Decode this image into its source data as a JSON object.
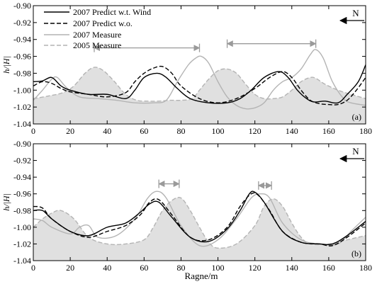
{
  "xlabel": "Ragne/m",
  "legend": {
    "entries": [
      {
        "name": "2007 Predict w.t. Wind",
        "color": "#000000",
        "dash": "solid"
      },
      {
        "name": "2007 Predict w.o.",
        "color": "#000000",
        "dash": "dashed"
      },
      {
        "name": "2007 Measure",
        "color": "#b4b4b4",
        "dash": "solid"
      },
      {
        "name": "2005 Measure",
        "color": "#b4b4b4",
        "dash": "dashed",
        "fill": "#e0e0e0"
      }
    ]
  },
  "chart_data": [
    {
      "type": "line",
      "panel_label": "(a)",
      "north_label": "N",
      "ylabel": "h/|H|",
      "xlim": [
        0,
        180
      ],
      "ylim": [
        -1.04,
        -0.9
      ],
      "x_ticks": [
        0,
        20,
        40,
        60,
        80,
        100,
        120,
        140,
        160,
        180
      ],
      "y_ticks": [
        -0.9,
        -0.92,
        -0.94,
        -0.96,
        -0.98,
        -1.0,
        -1.02,
        -1.04
      ],
      "x_tick_labels": [
        "0",
        "20",
        "40",
        "60",
        "80",
        "100",
        "120",
        "140",
        "160",
        "180"
      ],
      "y_tick_labels": [
        "-0.90",
        "-0.92",
        "-0.94",
        "-0.96",
        "-0.98",
        "-1.00",
        "-1.02",
        "-1.04"
      ],
      "arrows": [
        {
          "from": 33,
          "to": 90,
          "y": -0.95
        },
        {
          "from": 105,
          "to": 153,
          "y": -0.945
        }
      ],
      "series": [
        {
          "name": "2005 Measure",
          "x": [
            0,
            8,
            16,
            22,
            28,
            33,
            38,
            44,
            50,
            56,
            62,
            68,
            74,
            80,
            86,
            90,
            95,
            100,
            105,
            110,
            115,
            120,
            125,
            130,
            135,
            140,
            145,
            150,
            153,
            158,
            165,
            172,
            180
          ],
          "y": [
            -1.01,
            -1.007,
            -1.003,
            -0.995,
            -0.98,
            -0.973,
            -0.977,
            -0.99,
            -1.005,
            -1.012,
            -1.013,
            -1.013,
            -1.012,
            -1.012,
            -1.01,
            -1.0,
            -0.987,
            -0.977,
            -0.975,
            -0.98,
            -0.993,
            -1.005,
            -1.01,
            -1.01,
            -1.008,
            -1.0,
            -0.99,
            -0.985,
            -0.986,
            -0.993,
            -1.0,
            -1.005,
            -1.01
          ]
        },
        {
          "name": "2007 Measure",
          "x": [
            0,
            5,
            10,
            13,
            18,
            25,
            35,
            45,
            55,
            65,
            72,
            78,
            84,
            88,
            91,
            95,
            100,
            105,
            110,
            115,
            120,
            125,
            130,
            135,
            140,
            145,
            150,
            153,
            157,
            162,
            168,
            172,
            180
          ],
          "y": [
            -1.012,
            -1.0,
            -0.987,
            -0.985,
            -0.997,
            -1.008,
            -1.01,
            -1.012,
            -1.015,
            -1.015,
            -1.012,
            -0.99,
            -0.97,
            -0.962,
            -0.96,
            -0.968,
            -0.99,
            -1.008,
            -1.018,
            -1.022,
            -1.021,
            -1.015,
            -1.0,
            -0.99,
            -0.985,
            -0.975,
            -0.958,
            -0.952,
            -0.962,
            -0.99,
            -1.01,
            -1.015,
            -1.018
          ]
        },
        {
          "name": "2007 Predict w.o.",
          "x": [
            0,
            5,
            10,
            15,
            20,
            30,
            40,
            50,
            55,
            60,
            65,
            70,
            75,
            80,
            90,
            100,
            110,
            120,
            128,
            135,
            140,
            145,
            150,
            155,
            160,
            165,
            170,
            175,
            180
          ],
          "y": [
            -0.995,
            -0.99,
            -0.992,
            -0.998,
            -1.002,
            -1.005,
            -1.008,
            -1.003,
            -0.99,
            -0.98,
            -0.974,
            -0.972,
            -0.98,
            -0.995,
            -1.01,
            -1.015,
            -1.01,
            -0.998,
            -0.985,
            -0.978,
            -0.985,
            -1.0,
            -1.012,
            -1.016,
            -1.017,
            -1.017,
            -1.012,
            -1.0,
            -0.985
          ]
        },
        {
          "name": "2007 Predict w.t. Wind",
          "x": [
            0,
            5,
            10,
            15,
            20,
            30,
            40,
            50,
            55,
            60,
            67,
            72,
            78,
            85,
            95,
            105,
            112,
            118,
            125,
            133,
            138,
            143,
            148,
            152,
            158,
            165,
            170,
            176,
            180
          ],
          "y": [
            -0.99,
            -0.989,
            -0.985,
            -0.995,
            -1.0,
            -1.005,
            -1.005,
            -1.01,
            -1.0,
            -0.985,
            -0.98,
            -0.985,
            -0.998,
            -1.01,
            -1.015,
            -1.015,
            -1.01,
            -1.0,
            -0.985,
            -0.978,
            -0.985,
            -1.0,
            -1.01,
            -1.014,
            -1.013,
            -1.015,
            -1.005,
            -0.99,
            -0.97
          ]
        }
      ]
    },
    {
      "type": "line",
      "panel_label": "(b)",
      "north_label": "N",
      "ylabel": "h/|H|",
      "xlim": [
        0,
        180
      ],
      "ylim": [
        -1.04,
        -0.9
      ],
      "x_ticks": [
        0,
        20,
        40,
        60,
        80,
        100,
        120,
        140,
        160,
        180
      ],
      "y_ticks": [
        -0.9,
        -0.92,
        -0.94,
        -0.96,
        -0.98,
        -1.0,
        -1.02,
        -1.04
      ],
      "x_tick_labels": [
        "0",
        "20",
        "40",
        "60",
        "80",
        "100",
        "120",
        "140",
        "160",
        "180"
      ],
      "y_tick_labels": [
        "-0.90",
        "-0.92",
        "-0.94",
        "-0.96",
        "-0.98",
        "-1.00",
        "-1.02",
        "-1.04"
      ],
      "arrows": [
        {
          "from": 68,
          "to": 79,
          "y": -0.948
        },
        {
          "from": 122,
          "to": 129,
          "y": -0.95
        }
      ],
      "series": [
        {
          "name": "2005 Measure",
          "x": [
            0,
            5,
            10,
            15,
            22,
            30,
            40,
            50,
            60,
            65,
            70,
            75,
            80,
            85,
            90,
            95,
            100,
            110,
            120,
            125,
            130,
            135,
            140,
            145,
            150,
            160,
            170,
            180
          ],
          "y": [
            -1.0,
            -0.99,
            -0.983,
            -0.98,
            -0.99,
            -1.012,
            -1.02,
            -1.02,
            -1.015,
            -1.0,
            -0.98,
            -0.968,
            -0.965,
            -0.98,
            -1.0,
            -1.018,
            -1.025,
            -1.02,
            -0.998,
            -0.975,
            -0.966,
            -0.975,
            -0.995,
            -1.012,
            -1.02,
            -1.02,
            -1.015,
            -1.01
          ]
        },
        {
          "name": "2007 Measure",
          "x": [
            0,
            5,
            10,
            20,
            25,
            30,
            35,
            45,
            55,
            62,
            67,
            72,
            80,
            90,
            100,
            110,
            118,
            123,
            128,
            135,
            145,
            155,
            165,
            172,
            180
          ],
          "y": [
            -0.99,
            -0.992,
            -1.0,
            -1.008,
            -1.0,
            -0.998,
            -1.012,
            -1.01,
            -0.99,
            -0.965,
            -0.957,
            -0.965,
            -0.998,
            -1.022,
            -1.015,
            -0.99,
            -0.965,
            -0.96,
            -0.965,
            -0.995,
            -1.015,
            -1.02,
            -1.02,
            -1.005,
            -0.988
          ]
        },
        {
          "name": "2007 Predict w.o.",
          "x": [
            0,
            5,
            10,
            20,
            30,
            40,
            50,
            58,
            63,
            68,
            75,
            85,
            95,
            105,
            112,
            118,
            122,
            128,
            135,
            145,
            155,
            162,
            170,
            180
          ],
          "y": [
            -0.975,
            -0.977,
            -0.99,
            -1.005,
            -1.012,
            -1.005,
            -0.998,
            -0.985,
            -0.97,
            -0.967,
            -0.985,
            -1.012,
            -1.015,
            -1.0,
            -0.975,
            -0.96,
            -0.962,
            -0.98,
            -1.005,
            -1.018,
            -1.02,
            -1.022,
            -1.012,
            -0.995
          ]
        },
        {
          "name": "2007 Predict w.t. Wind",
          "x": [
            0,
            5,
            10,
            20,
            30,
            40,
            50,
            58,
            63,
            68,
            75,
            85,
            95,
            105,
            112,
            117,
            120,
            125,
            135,
            145,
            155,
            162,
            170,
            180
          ],
          "y": [
            -0.98,
            -0.98,
            -0.99,
            -1.005,
            -1.01,
            -1.0,
            -0.995,
            -0.982,
            -0.972,
            -0.97,
            -0.988,
            -1.012,
            -1.017,
            -1.002,
            -0.98,
            -0.96,
            -0.958,
            -0.97,
            -1.005,
            -1.018,
            -1.02,
            -1.02,
            -1.01,
            -0.993
          ]
        }
      ]
    }
  ]
}
